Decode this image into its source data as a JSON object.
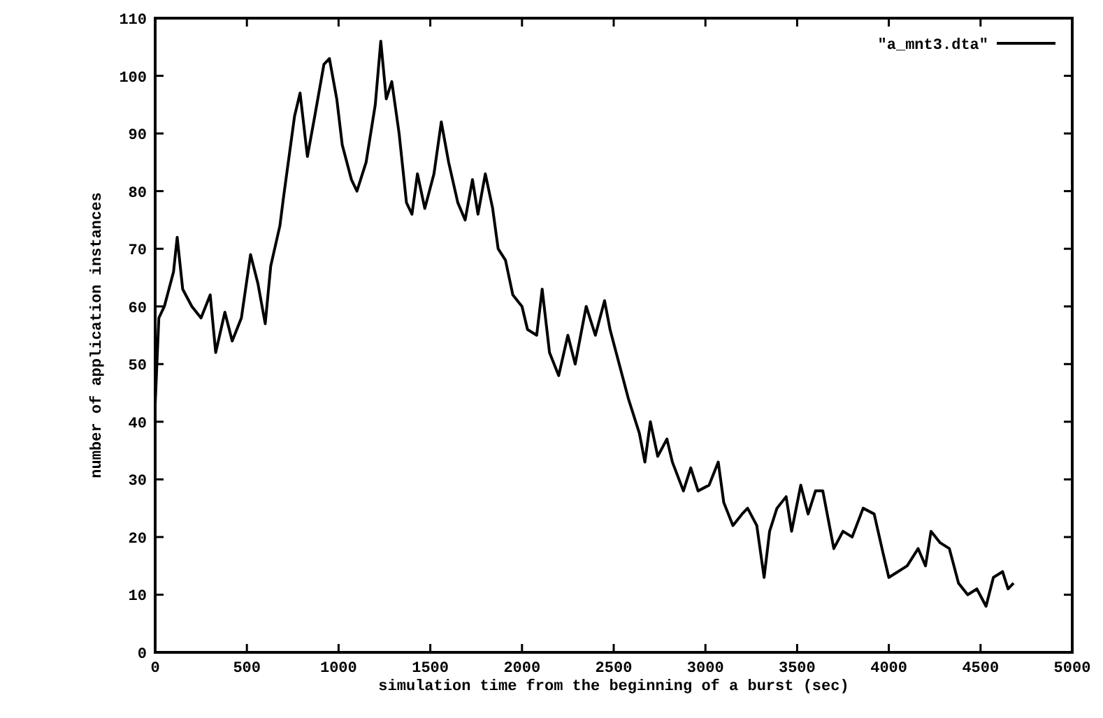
{
  "chart_data": {
    "type": "line",
    "xlabel": "simulation time from the beginning of a burst (sec)",
    "ylabel": "number of application instances",
    "xlim": [
      0,
      5000
    ],
    "ylim": [
      0,
      110
    ],
    "xticks": [
      0,
      500,
      1000,
      1500,
      2000,
      2500,
      3000,
      3500,
      4000,
      4500,
      5000
    ],
    "yticks": [
      0,
      10,
      20,
      30,
      40,
      50,
      60,
      70,
      80,
      90,
      100,
      110
    ],
    "legend": "top right",
    "grid": false,
    "marker": "none",
    "line_style": "solid",
    "series": [
      {
        "name": "\"a_mnt3.dta\"",
        "color": "#000000",
        "x": [
          0,
          20,
          50,
          100,
          120,
          150,
          200,
          250,
          300,
          330,
          380,
          420,
          470,
          520,
          560,
          600,
          630,
          680,
          700,
          760,
          790,
          830,
          870,
          920,
          950,
          990,
          1020,
          1070,
          1100,
          1150,
          1200,
          1230,
          1260,
          1290,
          1330,
          1370,
          1400,
          1430,
          1470,
          1520,
          1560,
          1600,
          1650,
          1690,
          1730,
          1760,
          1800,
          1840,
          1870,
          1910,
          1950,
          2000,
          2030,
          2080,
          2110,
          2150,
          2200,
          2250,
          2290,
          2350,
          2400,
          2450,
          2480,
          2530,
          2580,
          2640,
          2670,
          2700,
          2740,
          2790,
          2820,
          2880,
          2920,
          2960,
          3020,
          3070,
          3100,
          3150,
          3200,
          3230,
          3280,
          3320,
          3350,
          3390,
          3440,
          3470,
          3520,
          3560,
          3600,
          3640,
          3700,
          3750,
          3800,
          3860,
          3920,
          3970,
          4000,
          4050,
          4100,
          4160,
          4200,
          4230,
          4280,
          4330,
          4380,
          4430,
          4480,
          4530,
          4570,
          4620,
          4650,
          4680
        ],
        "values": [
          43,
          58,
          60,
          66,
          72,
          63,
          60,
          58,
          62,
          52,
          59,
          54,
          58,
          69,
          64,
          57,
          67,
          74,
          79,
          93,
          97,
          86,
          93,
          102,
          103,
          96,
          88,
          82,
          80,
          85,
          95,
          106,
          96,
          99,
          90,
          78,
          76,
          83,
          77,
          83,
          92,
          85,
          78,
          75,
          82,
          76,
          83,
          77,
          70,
          68,
          62,
          60,
          56,
          55,
          63,
          52,
          48,
          55,
          50,
          60,
          55,
          61,
          56,
          50,
          44,
          38,
          33,
          40,
          34,
          37,
          33,
          28,
          32,
          28,
          29,
          33,
          26,
          22,
          24,
          25,
          22,
          13,
          21,
          25,
          27,
          21,
          29,
          24,
          28,
          28,
          18,
          21,
          20,
          25,
          24,
          17,
          13,
          14,
          15,
          18,
          15,
          21,
          19,
          18,
          12,
          10,
          11,
          8,
          13,
          14,
          11,
          12
        ]
      }
    ]
  }
}
